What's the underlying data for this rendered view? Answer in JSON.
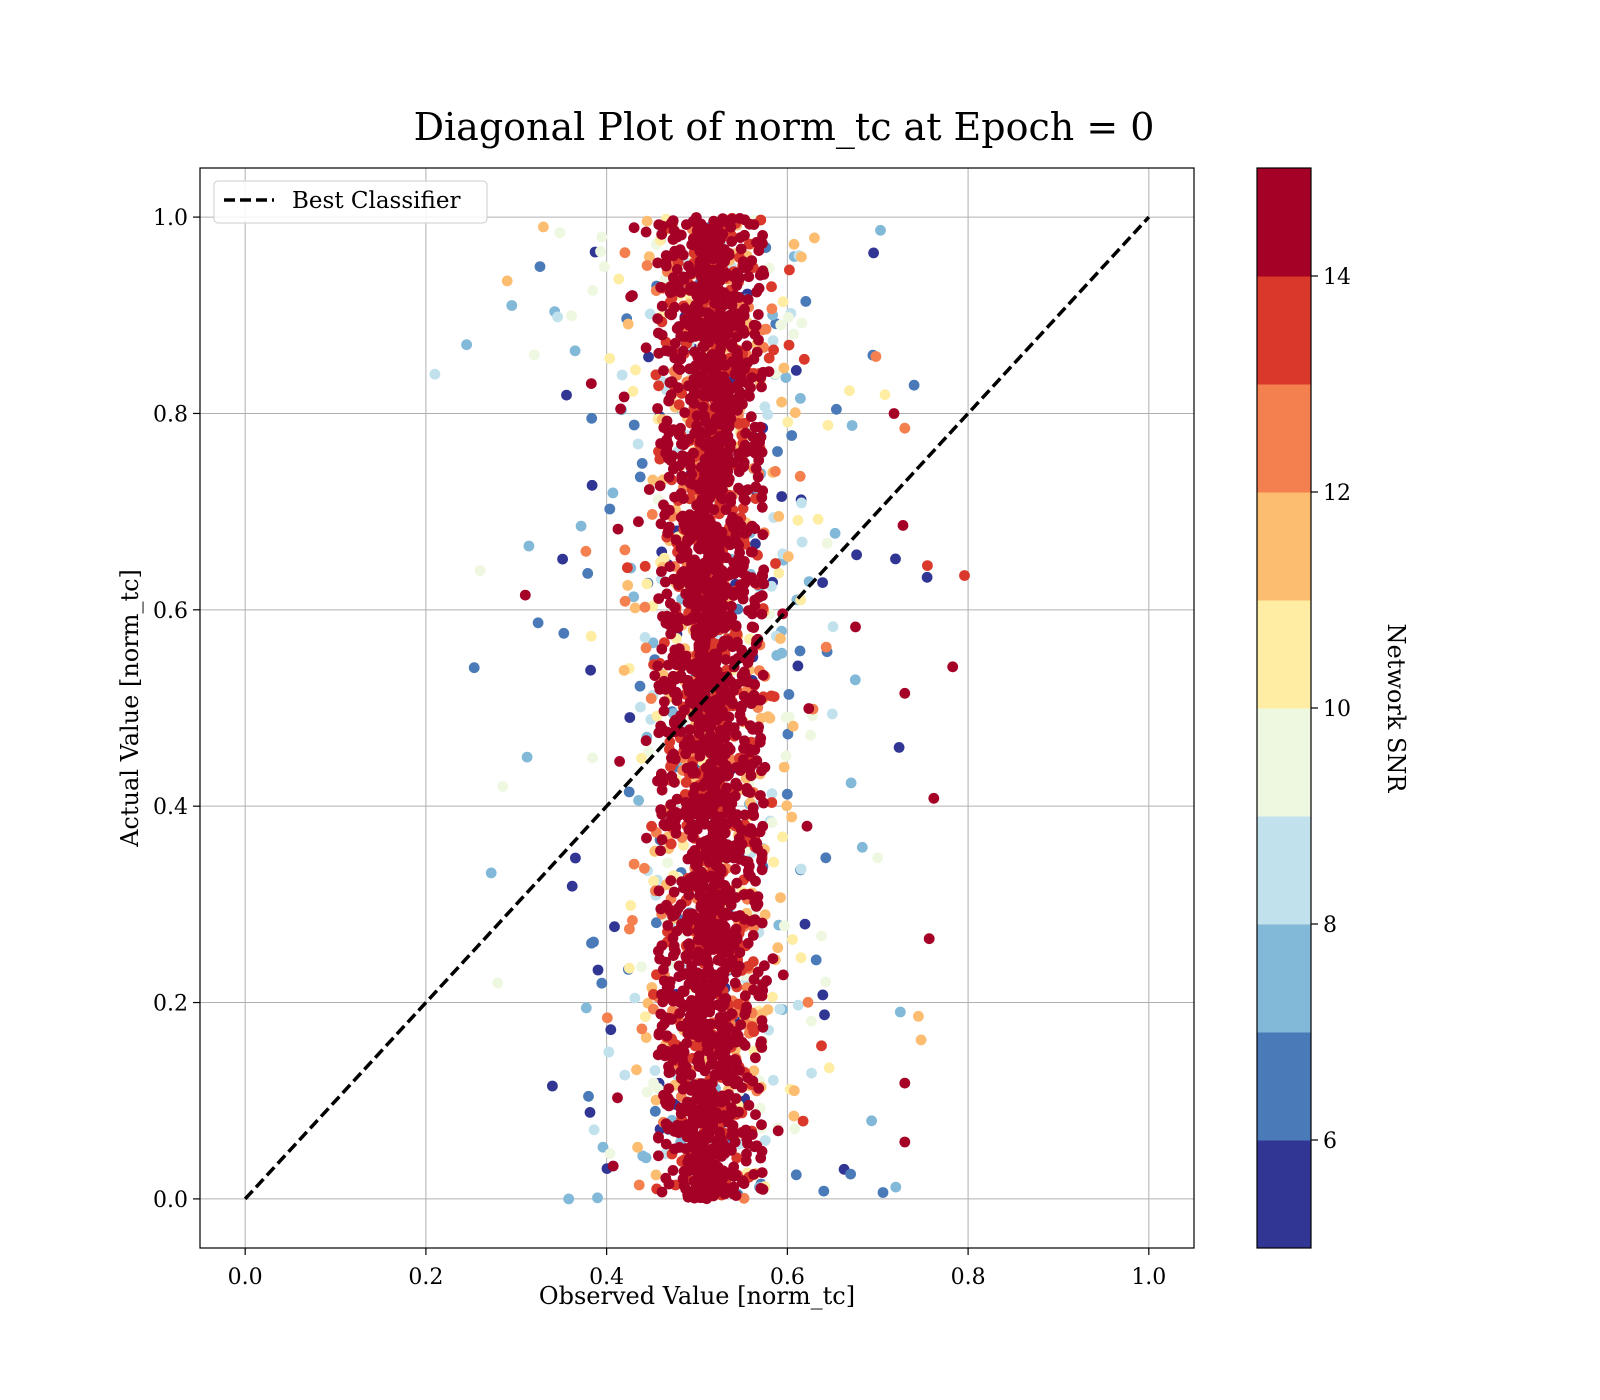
{
  "chart_data": {
    "type": "scatter",
    "title": "Diagonal Plot of norm_tc at Epoch = 0",
    "xlabel": "Observed Value [norm_tc]",
    "ylabel": "Actual Value [norm_tc]",
    "xlim": [
      -0.05,
      1.05
    ],
    "ylim": [
      -0.05,
      1.05
    ],
    "x_ticks": [
      0.0,
      0.2,
      0.4,
      0.6,
      0.8,
      1.0
    ],
    "x_tick_labels": [
      "0.0",
      "0.2",
      "0.4",
      "0.6",
      "0.8",
      "1.0"
    ],
    "y_ticks": [
      0.0,
      0.2,
      0.4,
      0.6,
      0.8,
      1.0
    ],
    "y_tick_labels": [
      "0.0",
      "0.2",
      "0.4",
      "0.6",
      "0.8",
      "1.0"
    ],
    "grid": true,
    "legend": {
      "placement": "upper-left",
      "entries": [
        {
          "label": "Best Classifier",
          "style": "dashed-black"
        }
      ]
    },
    "reference_line": {
      "label": "Best Classifier",
      "x": [
        0.0,
        1.0
      ],
      "y": [
        0.0,
        1.0
      ],
      "color": "#000000"
    },
    "colorbar": {
      "label": "Network SNR",
      "range": [
        5,
        15
      ],
      "ticks": [
        6,
        8,
        10,
        12,
        14
      ],
      "tick_labels": [
        "6",
        "8",
        "10",
        "12",
        "14"
      ],
      "colors": [
        "#313695",
        "#4a7ab7",
        "#82b8d8",
        "#c1e1ec",
        "#eef7df",
        "#feeda3",
        "#fdbd71",
        "#f4804f",
        "#da382a",
        "#a50026"
      ]
    },
    "description_of_distribution": {
      "dense_band_x_range": [
        0.45,
        0.58
      ],
      "dense_band_color": "#a50026",
      "scatter_x_range": [
        0.21,
        0.8
      ],
      "y_range": [
        0.0,
        1.0
      ]
    },
    "sample_points": [
      {
        "x": 0.21,
        "y": 0.84,
        "snr": 8.2
      },
      {
        "x": 0.245,
        "y": 0.87,
        "snr": 7.5
      },
      {
        "x": 0.26,
        "y": 0.64,
        "snr": 9.5
      },
      {
        "x": 0.285,
        "y": 0.42,
        "snr": 9.6
      },
      {
        "x": 0.29,
        "y": 0.935,
        "snr": 11.0
      },
      {
        "x": 0.295,
        "y": 0.91,
        "snr": 7.2
      },
      {
        "x": 0.31,
        "y": 0.615,
        "snr": 14.6
      },
      {
        "x": 0.312,
        "y": 0.45,
        "snr": 7.5
      },
      {
        "x": 0.314,
        "y": 0.665,
        "snr": 7.0
      },
      {
        "x": 0.34,
        "y": 0.115,
        "snr": 5.3
      },
      {
        "x": 0.33,
        "y": 0.99,
        "snr": 11.5
      },
      {
        "x": 0.358,
        "y": 0.0,
        "snr": 7.8
      },
      {
        "x": 0.72,
        "y": 0.012,
        "snr": 7.8
      },
      {
        "x": 0.796,
        "y": 0.635,
        "snr": 13.5
      },
      {
        "x": 0.783,
        "y": 0.542,
        "snr": 14.5
      },
      {
        "x": 0.762,
        "y": 0.408,
        "snr": 14.6
      },
      {
        "x": 0.757,
        "y": 0.265,
        "snr": 14.5
      },
      {
        "x": 0.755,
        "y": 0.645,
        "snr": 13.2
      },
      {
        "x": 0.745,
        "y": 0.186,
        "snr": 11.6
      },
      {
        "x": 0.748,
        "y": 0.162,
        "snr": 11.2
      },
      {
        "x": 0.73,
        "y": 0.785,
        "snr": 12.6
      },
      {
        "x": 0.728,
        "y": 0.686,
        "snr": 14.0
      },
      {
        "x": 0.718,
        "y": 0.8,
        "snr": 14.6
      },
      {
        "x": 0.73,
        "y": 0.515,
        "snr": 14.6
      },
      {
        "x": 0.73,
        "y": 0.058,
        "snr": 14.6
      },
      {
        "x": 0.73,
        "y": 0.118,
        "snr": 14.6
      },
      {
        "x": 0.698,
        "y": 0.858,
        "snr": 12.6
      }
    ]
  }
}
